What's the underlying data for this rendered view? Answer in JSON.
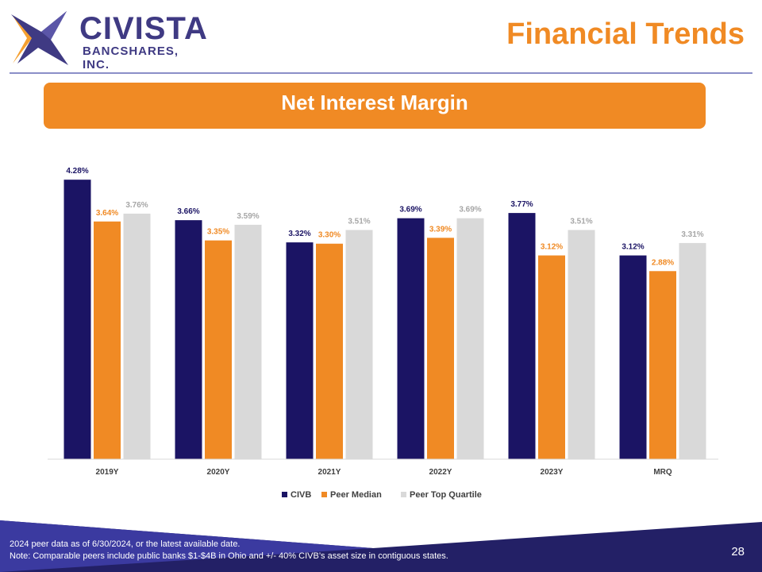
{
  "header": {
    "logo_name": "CIVISTA",
    "logo_sub": "BANCSHARES, INC.",
    "title": "Financial Trends"
  },
  "banner": "Net Interest Margin",
  "chart_data": {
    "type": "bar",
    "categories": [
      "2019Y",
      "2020Y",
      "2021Y",
      "2022Y",
      "2023Y",
      "MRQ"
    ],
    "series": [
      {
        "name": "CIVB",
        "color": "#1b1464",
        "label_color": "#1b1464",
        "values": [
          4.28,
          3.66,
          3.32,
          3.69,
          3.77,
          3.12
        ],
        "labels": [
          "4.28%",
          "3.66%",
          "3.32%",
          "3.69%",
          "3.77%",
          "3.12%"
        ]
      },
      {
        "name": "Peer Median",
        "color": "#f08a24",
        "label_color": "#f08a24",
        "values": [
          3.64,
          3.35,
          3.3,
          3.39,
          3.12,
          2.88
        ],
        "labels": [
          "3.64%",
          "3.35%",
          "3.30%",
          "3.39%",
          "3.12%",
          "2.88%"
        ]
      },
      {
        "name": "Peer Top Quartile",
        "color": "#d9d9d9",
        "label_color": "#a6a6a6",
        "values": [
          3.76,
          3.59,
          3.51,
          3.69,
          3.51,
          3.31
        ],
        "labels": [
          "3.76%",
          "3.59%",
          "3.51%",
          "3.69%",
          "3.51%",
          "3.31%"
        ]
      }
    ],
    "ylim": [
      0,
      4.5
    ],
    "grid": false,
    "legend": "bottom"
  },
  "footer": {
    "note1": "2024 peer data as of  6/30/2024, or the latest available date.",
    "note2": "Note: Comparable peers include public banks $1-$4B in Ohio and +/- 40% CIVB’s asset size in contiguous states.",
    "page": "28"
  }
}
